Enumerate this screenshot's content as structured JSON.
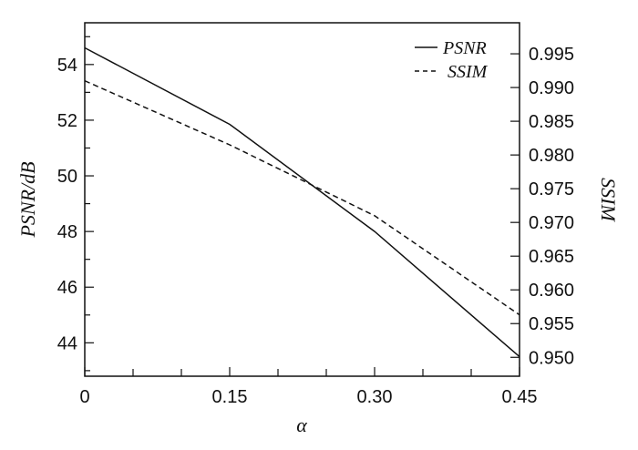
{
  "chart_data": {
    "type": "line",
    "x": [
      0,
      0.15,
      0.3,
      0.45
    ],
    "x_tick_labels": [
      "0",
      "0.15",
      "0.30",
      "0.45"
    ],
    "xlabel": "α",
    "xlim": [
      0,
      0.45
    ],
    "ylabel": "PSNR/dB",
    "ylim": [
      42.8,
      55.5
    ],
    "y_ticks": [
      44,
      46,
      48,
      50,
      52,
      54
    ],
    "y2label": "SSIM",
    "y2lim": [
      0.9472,
      0.9996
    ],
    "y2_ticks": [
      "0.950",
      "0.955",
      "0.960",
      "0.965",
      "0.970",
      "0.975",
      "0.980",
      "0.985",
      "0.990",
      "0.995"
    ],
    "series": [
      {
        "name": "PSNR",
        "axis": "left",
        "style": "solid",
        "color": "#111111",
        "values": [
          54.6,
          51.85,
          48.0,
          43.5
        ]
      },
      {
        "name": "SSIM",
        "axis": "right",
        "style": "dashed",
        "color": "#111111",
        "values": [
          0.991,
          0.9815,
          0.971,
          0.9563
        ]
      }
    ],
    "legend": "top-right",
    "grid": false
  }
}
